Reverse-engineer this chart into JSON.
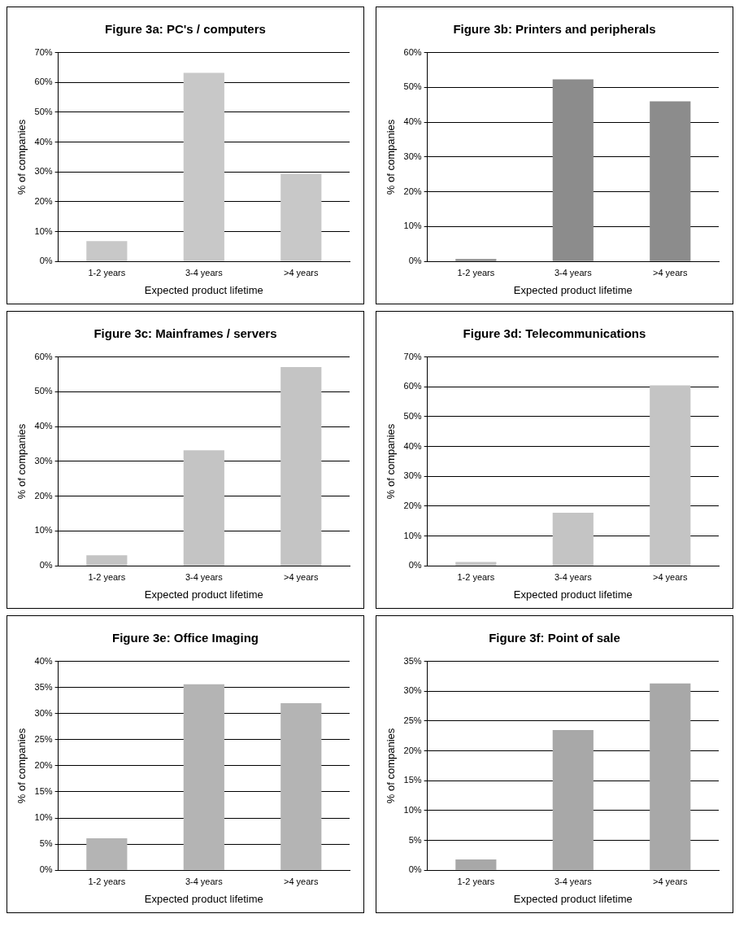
{
  "chart_data": [
    {
      "type": "bar",
      "title": "Figure 3a: PC's / computers",
      "xlabel": "Expected product lifetime",
      "ylabel": "% of companies",
      "categories": [
        "1-2 years",
        "3-4 years",
        ">4 years"
      ],
      "values": [
        6.8,
        63.2,
        29.3
      ],
      "color": "#c8c8c8",
      "ylim": [
        0,
        70
      ],
      "yticks": [
        {
          "value": 0,
          "label": "0%"
        },
        {
          "value": 10,
          "label": "10%"
        },
        {
          "value": 20,
          "label": "20%"
        },
        {
          "value": 30,
          "label": "30%"
        },
        {
          "value": 40,
          "label": "40%"
        },
        {
          "value": 50,
          "label": "50%"
        },
        {
          "value": 60,
          "label": "60%"
        },
        {
          "value": 70,
          "label": "70%"
        }
      ],
      "grid": "y"
    },
    {
      "type": "bar",
      "title": "Figure 3b: Printers and peripherals",
      "xlabel": "Expected product lifetime",
      "ylabel": "% of companies",
      "categories": [
        "1-2 years",
        "3-4 years",
        ">4 years"
      ],
      "values": [
        0.7,
        52.3,
        46.0
      ],
      "color": "#8c8c8c",
      "ylim": [
        0,
        60
      ],
      "yticks": [
        {
          "value": 0,
          "label": "0%"
        },
        {
          "value": 10,
          "label": "10%"
        },
        {
          "value": 20,
          "label": "20%"
        },
        {
          "value": 30,
          "label": "30%"
        },
        {
          "value": 40,
          "label": "40%"
        },
        {
          "value": 50,
          "label": "50%"
        },
        {
          "value": 60,
          "label": "60%"
        }
      ],
      "grid": "y"
    },
    {
      "type": "bar",
      "title": "Figure 3c: Mainframes / servers",
      "xlabel": "Expected product lifetime",
      "ylabel": "% of companies",
      "categories": [
        "1-2 years",
        "3-4 years",
        ">4 years"
      ],
      "values": [
        3.0,
        33.2,
        57.1
      ],
      "color": "#c4c4c4",
      "ylim": [
        0,
        60
      ],
      "yticks": [
        {
          "value": 0,
          "label": "0%"
        },
        {
          "value": 10,
          "label": "10%"
        },
        {
          "value": 20,
          "label": "20%"
        },
        {
          "value": 30,
          "label": "30%"
        },
        {
          "value": 40,
          "label": "40%"
        },
        {
          "value": 50,
          "label": "50%"
        },
        {
          "value": 60,
          "label": "60%"
        }
      ],
      "grid": "y"
    },
    {
      "type": "bar",
      "title": "Figure 3d: Telecommunications",
      "xlabel": "Expected product lifetime",
      "ylabel": "% of companies",
      "categories": [
        "1-2 years",
        "3-4 years",
        ">4 years"
      ],
      "values": [
        1.3,
        17.8,
        60.5
      ],
      "color": "#c4c4c4",
      "ylim": [
        0,
        70
      ],
      "yticks": [
        {
          "value": 0,
          "label": "0%"
        },
        {
          "value": 10,
          "label": "10%"
        },
        {
          "value": 20,
          "label": "20%"
        },
        {
          "value": 30,
          "label": "30%"
        },
        {
          "value": 40,
          "label": "40%"
        },
        {
          "value": 50,
          "label": "50%"
        },
        {
          "value": 60,
          "label": "60%"
        },
        {
          "value": 70,
          "label": "70%"
        }
      ],
      "grid": "y"
    },
    {
      "type": "bar",
      "title": "Figure 3e: Office Imaging",
      "xlabel": "Expected product lifetime",
      "ylabel": "% of companies",
      "categories": [
        "1-2 years",
        "3-4 years",
        ">4 years"
      ],
      "values": [
        6.1,
        35.6,
        32.0
      ],
      "color": "#b4b4b4",
      "ylim": [
        0,
        40
      ],
      "yticks": [
        {
          "value": 0,
          "label": "0%"
        },
        {
          "value": 5,
          "label": "5%"
        },
        {
          "value": 10,
          "label": "10%"
        },
        {
          "value": 15,
          "label": "15%"
        },
        {
          "value": 20,
          "label": "20%"
        },
        {
          "value": 25,
          "label": "25%"
        },
        {
          "value": 30,
          "label": "30%"
        },
        {
          "value": 35,
          "label": "35%"
        },
        {
          "value": 40,
          "label": "40%"
        }
      ],
      "grid": "y"
    },
    {
      "type": "bar",
      "title": "Figure 3f: Point of sale",
      "xlabel": "Expected product lifetime",
      "ylabel": "% of companies",
      "categories": [
        "1-2 years",
        "3-4 years",
        ">4 years"
      ],
      "values": [
        1.8,
        23.5,
        31.3
      ],
      "color": "#a8a8a8",
      "ylim": [
        0,
        35
      ],
      "yticks": [
        {
          "value": 0,
          "label": "0%"
        },
        {
          "value": 5,
          "label": "5%"
        },
        {
          "value": 10,
          "label": "10%"
        },
        {
          "value": 15,
          "label": "15%"
        },
        {
          "value": 20,
          "label": "20%"
        },
        {
          "value": 25,
          "label": "25%"
        },
        {
          "value": 30,
          "label": "30%"
        },
        {
          "value": 35,
          "label": "35%"
        }
      ],
      "grid": "y"
    }
  ]
}
